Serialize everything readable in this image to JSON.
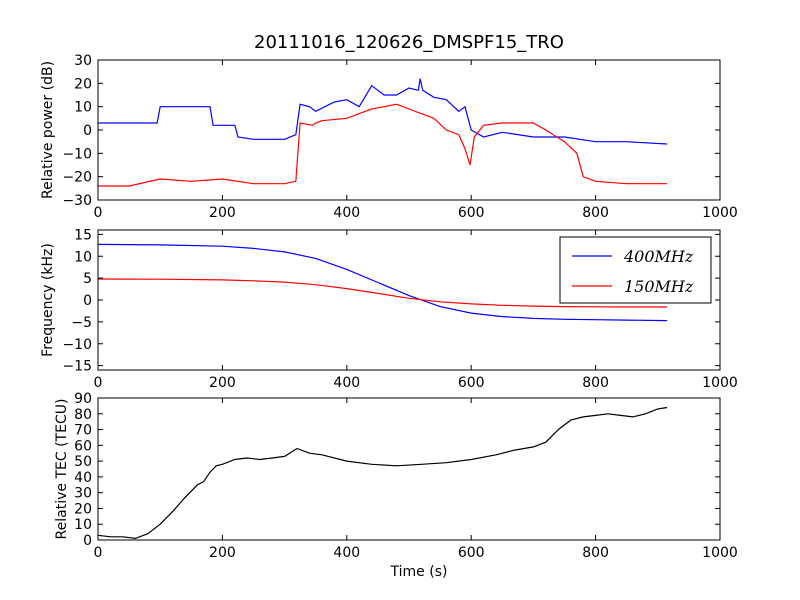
{
  "title": "20111016_120626_DMSPF15_TRO",
  "colors": {
    "blue": "#0000ff",
    "red": "#ff0000",
    "black": "#000000"
  },
  "chart_data": [
    {
      "type": "line",
      "ylabel": "Relative power (dB)",
      "xlim": [
        0,
        1000
      ],
      "ylim": [
        -30,
        30
      ],
      "xticks": [
        "0",
        "200",
        "400",
        "600",
        "800",
        "1000"
      ],
      "yticks": [
        "30",
        "20",
        "10",
        "0",
        "−10",
        "−20",
        "−30"
      ],
      "series": [
        {
          "color": "#0000ff",
          "x": [
            0,
            50,
            95,
            100,
            150,
            180,
            185,
            220,
            225,
            250,
            300,
            318,
            325,
            340,
            350,
            380,
            400,
            420,
            440,
            460,
            480,
            500,
            515,
            518,
            522,
            540,
            560,
            580,
            590,
            600,
            620,
            650,
            700,
            750,
            800,
            850,
            915
          ],
          "y": [
            3,
            3,
            3,
            10,
            10,
            10,
            2,
            2,
            -3,
            -4,
            -4,
            -2,
            11,
            10,
            8,
            12,
            13,
            10,
            19,
            15,
            15,
            18,
            17,
            22,
            17,
            14,
            13,
            8,
            10,
            0,
            -3,
            -1,
            -3,
            -3,
            -5,
            -5,
            -6
          ]
        },
        {
          "color": "#ff0000",
          "x": [
            0,
            50,
            100,
            150,
            200,
            250,
            300,
            318,
            325,
            345,
            350,
            360,
            400,
            440,
            480,
            500,
            540,
            560,
            580,
            590,
            598,
            605,
            620,
            650,
            700,
            720,
            750,
            770,
            780,
            800,
            850,
            915
          ],
          "y": [
            -24,
            -24,
            -21,
            -22,
            -21,
            -23,
            -23,
            -22,
            3,
            2,
            3,
            4,
            5,
            9,
            11,
            9,
            5,
            0,
            -2,
            -8,
            -15,
            -3,
            2,
            3,
            3,
            0,
            -5,
            -10,
            -20,
            -22,
            -23,
            -23
          ]
        }
      ]
    },
    {
      "type": "line",
      "ylabel": "Frequency (kHz)",
      "xlim": [
        0,
        1000
      ],
      "ylim": [
        -16,
        16
      ],
      "xticks": [
        "0",
        "200",
        "400",
        "600",
        "800",
        "1000"
      ],
      "yticks": [
        "15",
        "10",
        "5",
        "0",
        "−5",
        "−10",
        "−15"
      ],
      "legend": {
        "placement": "top-right",
        "entries": [
          "400MHz",
          "150MHz"
        ]
      },
      "series": [
        {
          "name": "400MHz",
          "color": "#0000ff",
          "x": [
            0,
            100,
            200,
            250,
            300,
            350,
            400,
            450,
            500,
            550,
            600,
            650,
            700,
            750,
            800,
            850,
            915
          ],
          "y": [
            12.7,
            12.6,
            12.3,
            11.8,
            11.0,
            9.5,
            7.0,
            4.0,
            1.0,
            -1.5,
            -3.0,
            -3.8,
            -4.2,
            -4.4,
            -4.5,
            -4.6,
            -4.7
          ]
        },
        {
          "name": "150MHz",
          "color": "#ff0000",
          "x": [
            0,
            100,
            200,
            250,
            300,
            350,
            400,
            450,
            500,
            550,
            600,
            650,
            700,
            750,
            800,
            850,
            915
          ],
          "y": [
            4.8,
            4.75,
            4.6,
            4.4,
            4.1,
            3.5,
            2.6,
            1.5,
            0.4,
            -0.4,
            -0.9,
            -1.2,
            -1.4,
            -1.5,
            -1.55,
            -1.6,
            -1.6
          ]
        }
      ]
    },
    {
      "type": "line",
      "ylabel": "Relative TEC (TECU)",
      "xlabel": "Time (s)",
      "xlim": [
        0,
        1000
      ],
      "ylim": [
        0,
        90
      ],
      "xticks": [
        "0",
        "200",
        "400",
        "600",
        "800",
        "1000"
      ],
      "yticks": [
        "90",
        "80",
        "70",
        "60",
        "50",
        "40",
        "30",
        "20",
        "10",
        "0"
      ],
      "series": [
        {
          "color": "#000000",
          "x": [
            0,
            20,
            40,
            60,
            80,
            100,
            120,
            140,
            160,
            170,
            180,
            190,
            200,
            220,
            240,
            260,
            280,
            300,
            320,
            340,
            360,
            400,
            440,
            480,
            520,
            560,
            600,
            640,
            670,
            700,
            720,
            740,
            760,
            780,
            800,
            820,
            840,
            860,
            880,
            900,
            915
          ],
          "y": [
            3,
            2,
            2,
            1,
            4,
            10,
            18,
            27,
            35,
            37,
            43,
            47,
            48,
            51,
            52,
            51,
            52,
            53,
            58,
            55,
            54,
            50,
            48,
            47,
            48,
            49,
            51,
            54,
            57,
            59,
            62,
            70,
            76,
            78,
            79,
            80,
            79,
            78,
            80,
            83,
            84
          ]
        }
      ]
    }
  ]
}
